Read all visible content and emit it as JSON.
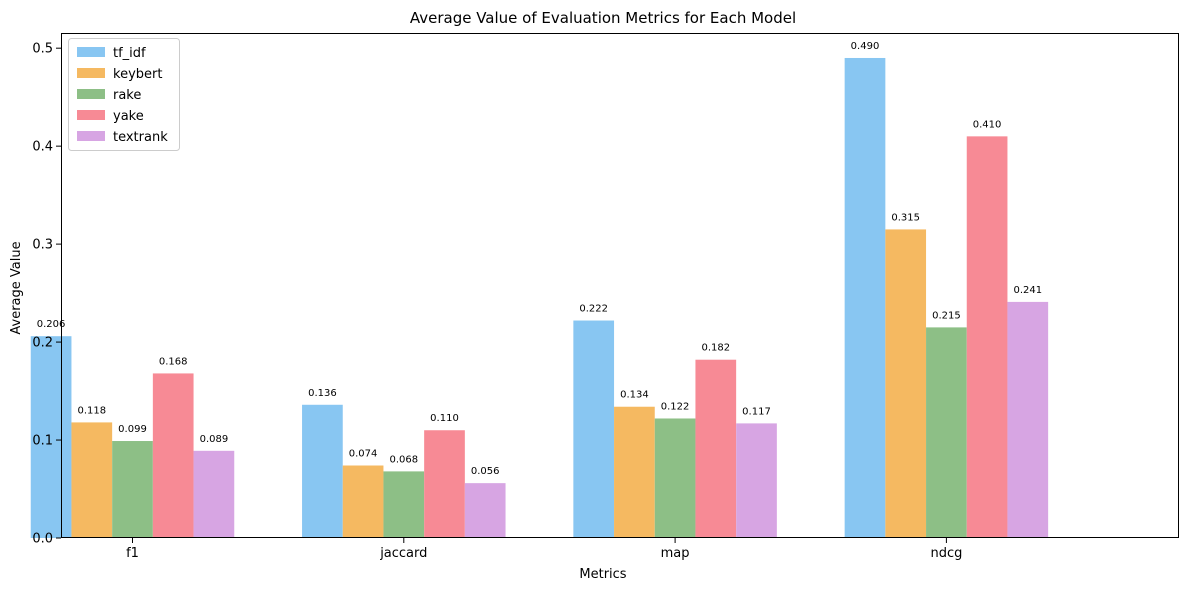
{
  "chart_data": {
    "type": "bar",
    "title": "Average Value of Evaluation Metrics for Each Model",
    "xlabel": "Metrics",
    "ylabel": "Average Value",
    "categories": [
      "f1",
      "jaccard",
      "map",
      "ndcg"
    ],
    "ylim": [
      0,
      0.5155
    ],
    "yticks": [
      0.0,
      0.1,
      0.2,
      0.3,
      0.4,
      0.5
    ],
    "ytick_labels": [
      "0.0",
      "0.1",
      "0.2",
      "0.3",
      "0.4",
      "0.5"
    ],
    "grid": false,
    "legend_position": "top-left",
    "series": [
      {
        "name": "tf_idf",
        "color": "#88c6f2",
        "values": [
          0.206,
          0.136,
          0.222,
          0.49
        ],
        "labels": [
          "0.206",
          "0.136",
          "0.222",
          "0.490"
        ]
      },
      {
        "name": "keybert",
        "color": "#f5b961",
        "values": [
          0.118,
          0.074,
          0.134,
          0.315
        ],
        "labels": [
          "0.118",
          "0.074",
          "0.134",
          "0.315"
        ]
      },
      {
        "name": "rake",
        "color": "#8dbf86",
        "values": [
          0.099,
          0.068,
          0.122,
          0.215
        ],
        "labels": [
          "0.099",
          "0.068",
          "0.122",
          "0.215"
        ]
      },
      {
        "name": "yake",
        "color": "#f78a95",
        "values": [
          0.168,
          0.11,
          0.182,
          0.41
        ],
        "labels": [
          "0.168",
          "0.110",
          "0.182",
          "0.410"
        ]
      },
      {
        "name": "textrank",
        "color": "#d7a5e3",
        "values": [
          0.089,
          0.056,
          0.117,
          0.241
        ],
        "labels": [
          "0.089",
          "0.056",
          "0.117",
          "0.241"
        ]
      }
    ]
  }
}
